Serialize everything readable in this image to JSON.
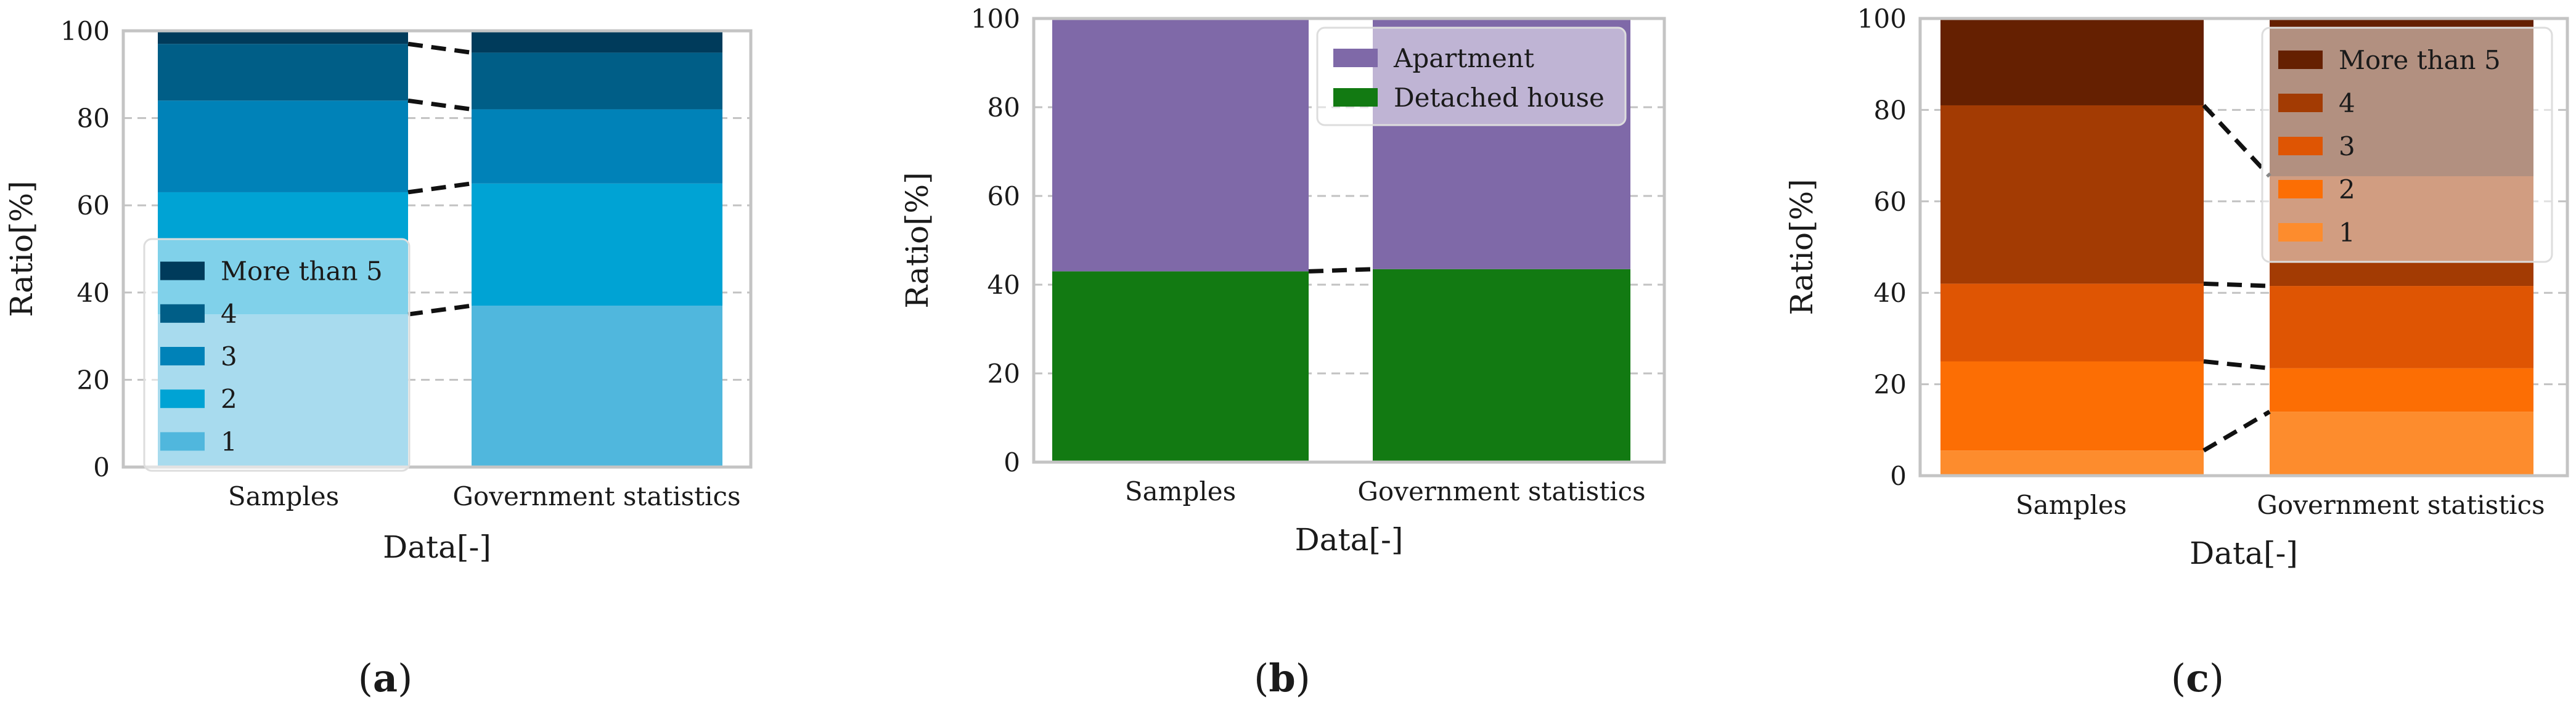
{
  "chart_data": [
    {
      "type": "bar",
      "stacked": true,
      "panel_label": "a",
      "xlabel": "Data[-]",
      "ylabel": "Ratio[%]",
      "ylim": [
        0,
        100
      ],
      "yticks": [
        0,
        20,
        40,
        60,
        80,
        100
      ],
      "grid": true,
      "legend_position": "middle-left",
      "categories": [
        "Samples",
        "Government statistics"
      ],
      "series": [
        {
          "name": "1",
          "color": "#50b7dd",
          "values": [
            35,
            37
          ]
        },
        {
          "name": "2",
          "color": "#00a3d4",
          "values": [
            28,
            28
          ]
        },
        {
          "name": "3",
          "color": "#0082b8",
          "values": [
            21,
            17
          ]
        },
        {
          "name": "4",
          "color": "#005e87",
          "values": [
            13,
            13
          ]
        },
        {
          "name": "More than 5",
          "color": "#003b5b",
          "values": [
            3,
            5
          ]
        }
      ]
    },
    {
      "type": "bar",
      "stacked": true,
      "panel_label": "b",
      "xlabel": "Data[-]",
      "ylabel": "Ratio[%]",
      "ylim": [
        0,
        100
      ],
      "yticks": [
        0,
        20,
        40,
        60,
        80,
        100
      ],
      "grid": true,
      "legend_position": "top-right",
      "categories": [
        "Samples",
        "Government statistics"
      ],
      "series": [
        {
          "name": "Detached house",
          "color": "#127a12",
          "values": [
            43,
            43.5
          ]
        },
        {
          "name": "Apartment",
          "color": "#7f69a8",
          "values": [
            57,
            56.5
          ]
        }
      ]
    },
    {
      "type": "bar",
      "stacked": true,
      "panel_label": "c",
      "xlabel": "Data[-]",
      "ylabel": "Ratio[%]",
      "ylim": [
        0,
        100
      ],
      "yticks": [
        0,
        20,
        40,
        60,
        80,
        100
      ],
      "grid": true,
      "legend_position": "top-right",
      "categories": [
        "Samples",
        "Government statistics"
      ],
      "series": [
        {
          "name": "1",
          "color": "#fd8c2d",
          "values": [
            5.5,
            14
          ]
        },
        {
          "name": "2",
          "color": "#fc6e04",
          "values": [
            19.5,
            9.5
          ]
        },
        {
          "name": "3",
          "color": "#df5503",
          "values": [
            17,
            18
          ]
        },
        {
          "name": "4",
          "color": "#a33b03",
          "values": [
            39,
            24
          ]
        },
        {
          "name": "More than 5",
          "color": "#652001",
          "values": [
            19,
            34.5
          ]
        }
      ]
    }
  ]
}
